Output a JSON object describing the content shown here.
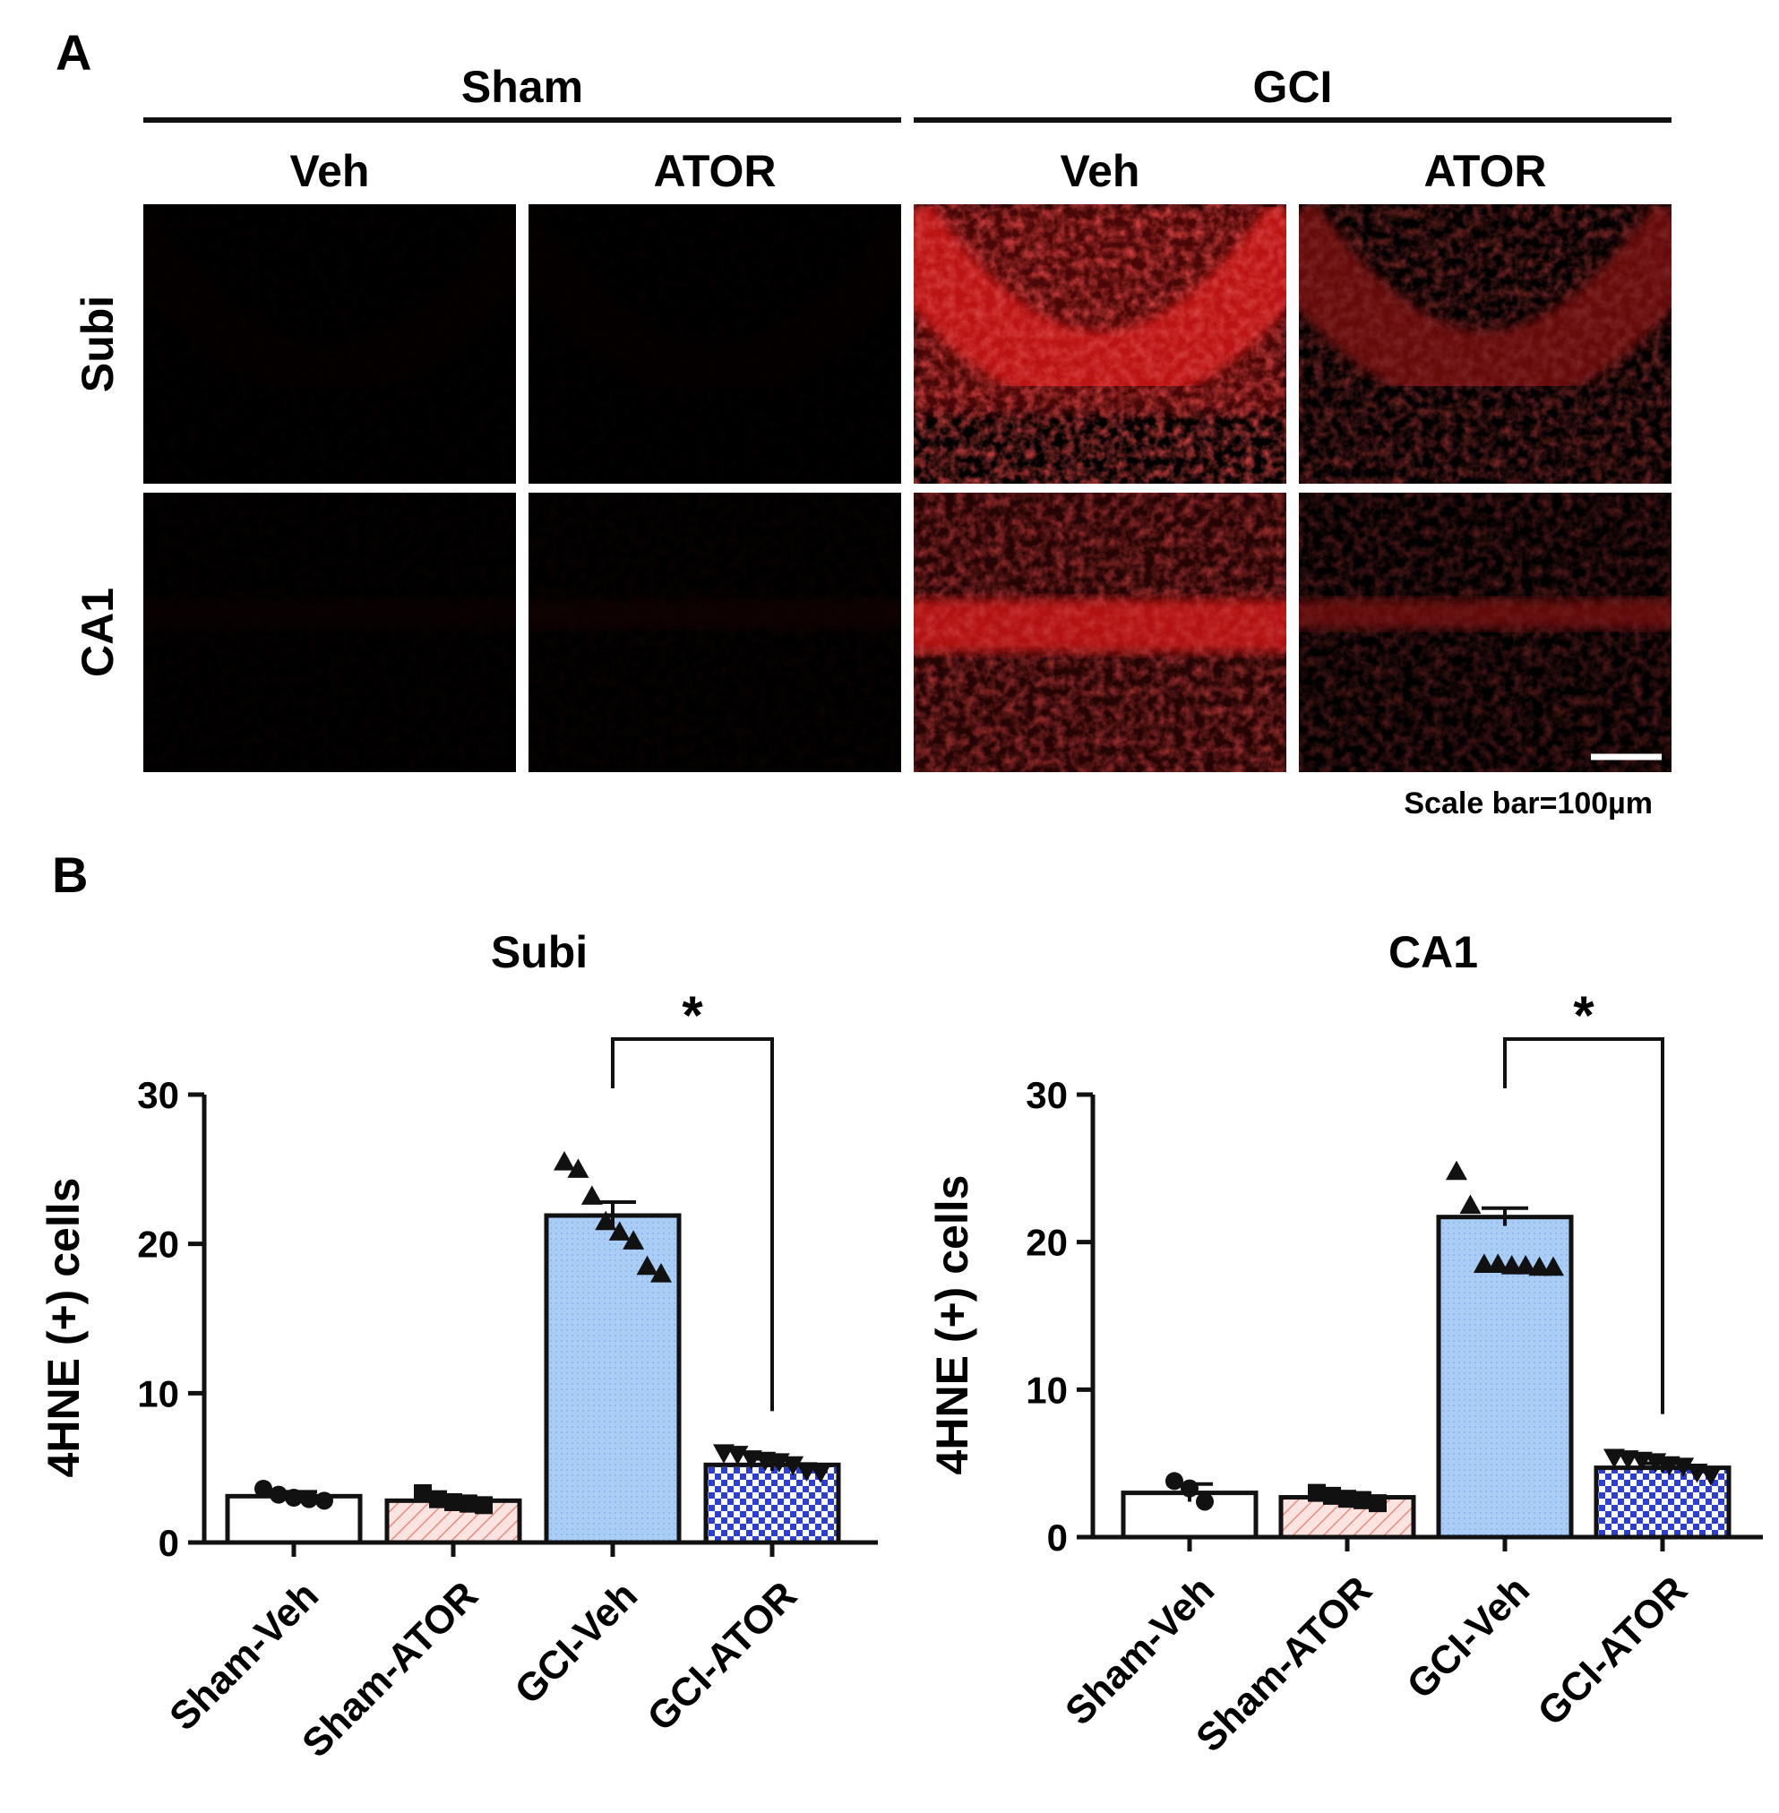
{
  "panel_a": {
    "label": "A",
    "groups": [
      {
        "name": "Sham",
        "treatments": [
          "Veh",
          "ATOR"
        ]
      },
      {
        "name": "GCI",
        "treatments": [
          "Veh",
          "ATOR"
        ]
      }
    ],
    "rows": [
      "Subi",
      "CA1"
    ],
    "scale_bar_text": "Scale bar=100µm",
    "colors": {
      "stain": "#ff1a1a",
      "background": "#000000"
    },
    "staining_intensity": [
      [
        0.02,
        0.02,
        0.85,
        0.5
      ],
      [
        0.04,
        0.06,
        0.8,
        0.45
      ]
    ]
  },
  "panel_b": {
    "label": "B"
  },
  "colors": {
    "sham_veh": "#ffffff",
    "sham_ator": "#f5b5ad",
    "gci_veh": "#a9cdf5",
    "gci_ator": "#2b3fd6",
    "axis": "#111111"
  },
  "chart_data": [
    {
      "type": "bar",
      "title": "Subi",
      "ylabel": "4HNE (+) cells",
      "xlabel": "",
      "ylim": [
        0,
        30
      ],
      "yticks": [
        "0",
        "10",
        "20",
        "30"
      ],
      "categories": [
        "Sham-Veh",
        "Sham-ATOR",
        "GCI-Veh",
        "GCI-ATOR"
      ],
      "values": [
        3.1,
        2.8,
        21.9,
        5.2
      ],
      "sem": [
        0.3,
        0.3,
        0.9,
        0.4
      ],
      "points": [
        [
          3.6,
          3.2,
          3.0,
          2.9,
          2.8
        ],
        [
          3.3,
          2.9,
          2.7,
          2.6,
          2.5
        ],
        [
          25.5,
          25.0,
          23.2,
          21.5,
          20.8,
          20.2,
          18.5,
          18.0
        ],
        [
          6.0,
          5.9,
          5.6,
          5.5,
          5.4,
          5.2,
          4.8,
          4.7
        ]
      ],
      "markers": [
        "circle",
        "square",
        "triangle-up",
        "triangle-down"
      ],
      "significance": {
        "from": 2,
        "to": 3,
        "label": "*"
      }
    },
    {
      "type": "bar",
      "title": "CA1",
      "ylabel": "4HNE (+) cells",
      "xlabel": "",
      "ylim": [
        0,
        30
      ],
      "yticks": [
        "0",
        "10",
        "20",
        "30"
      ],
      "categories": [
        "Sham-Veh",
        "Sham-ATOR",
        "GCI-Veh",
        "GCI-ATOR"
      ],
      "values": [
        3.0,
        2.7,
        21.7,
        4.7
      ],
      "sem": [
        0.6,
        0.3,
        0.6,
        0.3
      ],
      "points": [
        [
          3.8,
          3.3,
          2.4
        ],
        [
          3.0,
          2.8,
          2.6,
          2.5,
          2.3
        ],
        [
          24.8,
          22.5,
          18.5,
          18.5,
          18.4,
          18.4,
          18.3,
          18.3
        ],
        [
          5.4,
          5.3,
          5.2,
          5.1,
          4.9,
          4.8,
          4.4,
          4.2
        ]
      ],
      "markers": [
        "circle",
        "square",
        "triangle-up",
        "triangle-down"
      ],
      "significance": {
        "from": 2,
        "to": 3,
        "label": "*"
      }
    }
  ]
}
